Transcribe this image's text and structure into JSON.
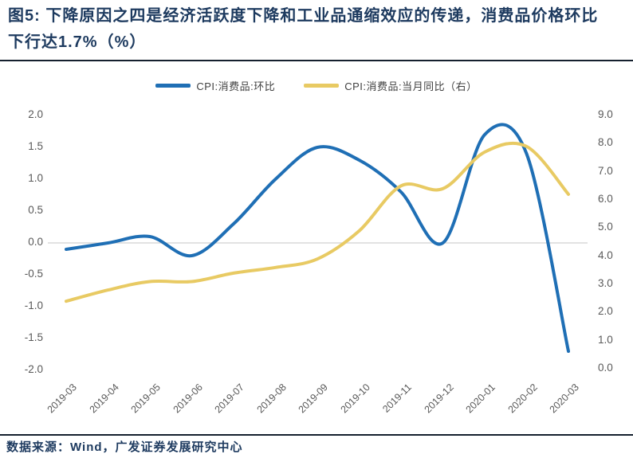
{
  "header": {
    "title": "图5: 下降原因之四是经济活跃度下降和工业品通缩效应的传递，消费品价格环比下行达1.7%（%）"
  },
  "footer": {
    "source": "数据来源：Wind，广发证券发展研究中心"
  },
  "colors": {
    "title_navy": "#1d3a5f",
    "series_blue": "#1f6fb5",
    "series_yellow": "#e8ca63",
    "axis_text_gray": "#595959",
    "gridline_gray": "#d9d9d9",
    "divider_dark": "#15202e"
  },
  "chart_data": {
    "type": "line",
    "smooth": true,
    "grid": "zero-line-only",
    "legend_position": "top",
    "categories": [
      "2019-03",
      "2019-04",
      "2019-05",
      "2019-06",
      "2019-07",
      "2019-08",
      "2019-09",
      "2019-10",
      "2019-11",
      "2019-12",
      "2020-01",
      "2020-02",
      "2020-03"
    ],
    "series": [
      {
        "name": "CPI:消费品:环比",
        "axis": "left",
        "color": "#1f6fb5",
        "values": [
          -0.1,
          0.0,
          0.1,
          -0.2,
          0.3,
          1.0,
          1.5,
          1.3,
          0.8,
          0.0,
          1.7,
          1.4,
          -1.7
        ]
      },
      {
        "name": "CPI:消费品:当月同比（右）",
        "axis": "right",
        "color": "#e8ca63",
        "values": [
          2.4,
          2.8,
          3.1,
          3.1,
          3.4,
          3.6,
          3.9,
          4.9,
          6.5,
          6.4,
          7.7,
          7.9,
          6.2
        ]
      }
    ],
    "left_axis": {
      "min": -2.0,
      "max": 2.0,
      "step": 0.5,
      "ticks": [
        "2.0",
        "1.5",
        "1.0",
        "0.5",
        "0.0",
        "-0.5",
        "-1.0",
        "-1.5",
        "-2.0"
      ]
    },
    "right_axis": {
      "min": 0.0,
      "max": 9.0,
      "step": 1.0,
      "ticks": [
        "9.0",
        "8.0",
        "7.0",
        "6.0",
        "5.0",
        "4.0",
        "3.0",
        "2.0",
        "1.0",
        "0.0"
      ]
    }
  }
}
